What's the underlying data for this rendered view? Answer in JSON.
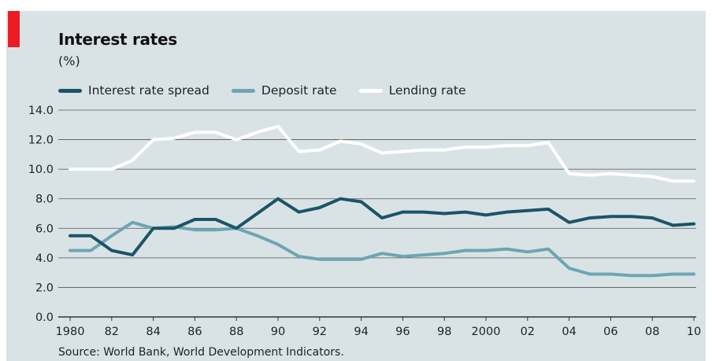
{
  "title": "Interest rates",
  "subtitle": "(%)",
  "source": "Source: World Bank, World Development Indicators.",
  "colors": {
    "background": "#d9e3e6",
    "accent": "#ed1c24",
    "spread": "#1b5468",
    "deposit": "#6ea5b2",
    "lending": "#ffffff",
    "grid": "#555555"
  },
  "chart_data": {
    "type": "line",
    "title": "Interest rates",
    "ylabel": "(%)",
    "xlim": [
      1980,
      2010
    ],
    "ylim": [
      0,
      14
    ],
    "y_ticks": [
      "0.0",
      "2.0",
      "4.0",
      "6.0",
      "8.0",
      "10.0",
      "12.0",
      "14.0"
    ],
    "x_ticks": [
      {
        "x": 1980,
        "label": "1980"
      },
      {
        "x": 1982,
        "label": "82"
      },
      {
        "x": 1984,
        "label": "84"
      },
      {
        "x": 1986,
        "label": "86"
      },
      {
        "x": 1988,
        "label": "88"
      },
      {
        "x": 1990,
        "label": "90"
      },
      {
        "x": 1992,
        "label": "92"
      },
      {
        "x": 1994,
        "label": "94"
      },
      {
        "x": 1996,
        "label": "96"
      },
      {
        "x": 1998,
        "label": "98"
      },
      {
        "x": 2000,
        "label": "2000"
      },
      {
        "x": 2002,
        "label": "02"
      },
      {
        "x": 2004,
        "label": "04"
      },
      {
        "x": 2006,
        "label": "06"
      },
      {
        "x": 2008,
        "label": "08"
      },
      {
        "x": 2010,
        "label": "10"
      }
    ],
    "grid": true,
    "legend_position": "top-left",
    "x": [
      1980,
      1981,
      1982,
      1983,
      1984,
      1985,
      1986,
      1987,
      1988,
      1989,
      1990,
      1991,
      1992,
      1993,
      1994,
      1995,
      1996,
      1997,
      1998,
      1999,
      2000,
      2001,
      2002,
      2003,
      2004,
      2005,
      2006,
      2007,
      2008,
      2009,
      2010
    ],
    "series": [
      {
        "name": "Interest rate spread",
        "color": "#1b5468",
        "values": [
          5.5,
          5.5,
          4.5,
          4.2,
          6.0,
          6.0,
          6.6,
          6.6,
          6.0,
          7.0,
          8.0,
          7.1,
          7.4,
          8.0,
          7.8,
          6.7,
          7.1,
          7.1,
          7.0,
          7.1,
          6.9,
          7.1,
          7.2,
          7.3,
          6.4,
          6.7,
          6.8,
          6.8,
          6.7,
          6.2,
          6.3
        ]
      },
      {
        "name": "Deposit rate",
        "color": "#6ea5b2",
        "values": [
          4.5,
          4.5,
          5.5,
          6.4,
          6.0,
          6.1,
          5.9,
          5.9,
          6.0,
          5.5,
          4.9,
          4.1,
          3.9,
          3.9,
          3.9,
          4.3,
          4.1,
          4.2,
          4.3,
          4.5,
          4.5,
          4.6,
          4.4,
          4.6,
          3.3,
          2.9,
          2.9,
          2.8,
          2.8,
          2.9,
          2.9
        ]
      },
      {
        "name": "Lending rate",
        "color": "#ffffff",
        "values": [
          10.0,
          10.0,
          10.0,
          10.6,
          12.0,
          12.1,
          12.5,
          12.5,
          12.0,
          12.5,
          12.9,
          11.2,
          11.3,
          11.9,
          11.7,
          11.1,
          11.2,
          11.3,
          11.3,
          11.5,
          11.5,
          11.6,
          11.6,
          11.8,
          9.7,
          9.6,
          9.7,
          9.6,
          9.5,
          9.2,
          9.2
        ]
      }
    ]
  }
}
